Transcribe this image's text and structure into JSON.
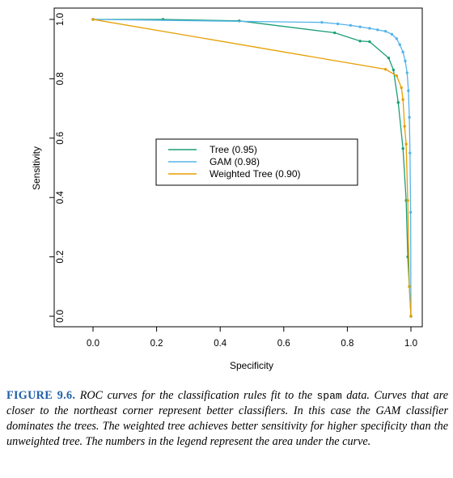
{
  "chart_data": {
    "type": "line",
    "xlabel": "Specificity",
    "ylabel": "Sensitivity",
    "xlim": [
      0,
      1
    ],
    "ylim": [
      0,
      1
    ],
    "xticks": [
      "0.0",
      "0.2",
      "0.4",
      "0.6",
      "0.8",
      "1.0"
    ],
    "yticks": [
      "0.0",
      "0.2",
      "0.4",
      "0.6",
      "0.8",
      "1.0"
    ],
    "grid": false,
    "legend_position": "center",
    "series": [
      {
        "name": "Tree (0.95)",
        "color": "#1a9e77",
        "points": [
          [
            0.0,
            1.0
          ],
          [
            0.22,
            1.0
          ],
          [
            0.46,
            0.995
          ],
          [
            0.76,
            0.955
          ],
          [
            0.84,
            0.927
          ],
          [
            0.87,
            0.925
          ],
          [
            0.93,
            0.87
          ],
          [
            0.945,
            0.83
          ],
          [
            0.96,
            0.72
          ],
          [
            0.975,
            0.565
          ],
          [
            0.985,
            0.39
          ],
          [
            0.99,
            0.2
          ],
          [
            0.995,
            0.1
          ],
          [
            1.0,
            0.0
          ]
        ]
      },
      {
        "name": "GAM (0.98)",
        "color": "#56b4e9",
        "points": [
          [
            0.0,
            1.0
          ],
          [
            0.72,
            0.99
          ],
          [
            0.77,
            0.985
          ],
          [
            0.81,
            0.98
          ],
          [
            0.84,
            0.975
          ],
          [
            0.87,
            0.97
          ],
          [
            0.895,
            0.965
          ],
          [
            0.92,
            0.96
          ],
          [
            0.94,
            0.95
          ],
          [
            0.955,
            0.935
          ],
          [
            0.965,
            0.915
          ],
          [
            0.975,
            0.89
          ],
          [
            0.982,
            0.86
          ],
          [
            0.988,
            0.82
          ],
          [
            0.992,
            0.76
          ],
          [
            0.995,
            0.67
          ],
          [
            0.997,
            0.55
          ],
          [
            0.999,
            0.35
          ],
          [
            1.0,
            0.0
          ]
        ]
      },
      {
        "name": "Weighted Tree (0.90)",
        "color": "#e69f00",
        "points": [
          [
            0.0,
            1.0
          ],
          [
            0.92,
            0.832
          ],
          [
            0.955,
            0.81
          ],
          [
            0.97,
            0.77
          ],
          [
            0.975,
            0.73
          ],
          [
            0.98,
            0.64
          ],
          [
            0.985,
            0.58
          ],
          [
            0.99,
            0.39
          ],
          [
            0.995,
            0.1
          ],
          [
            1.0,
            0.0
          ]
        ]
      }
    ]
  },
  "caption": {
    "label": "FIGURE 9.6.",
    "text_before_code": "ROC curves for the classification rules fit to the",
    "code": "spam",
    "text_after_code": "data. Curves that are closer to the northeast corner represent better classifiers. In this case the GAM classifier dominates the trees. The weighted tree achieves better sensitivity for higher specificity than the unweighted tree. The numbers in the legend represent the area under the curve."
  }
}
